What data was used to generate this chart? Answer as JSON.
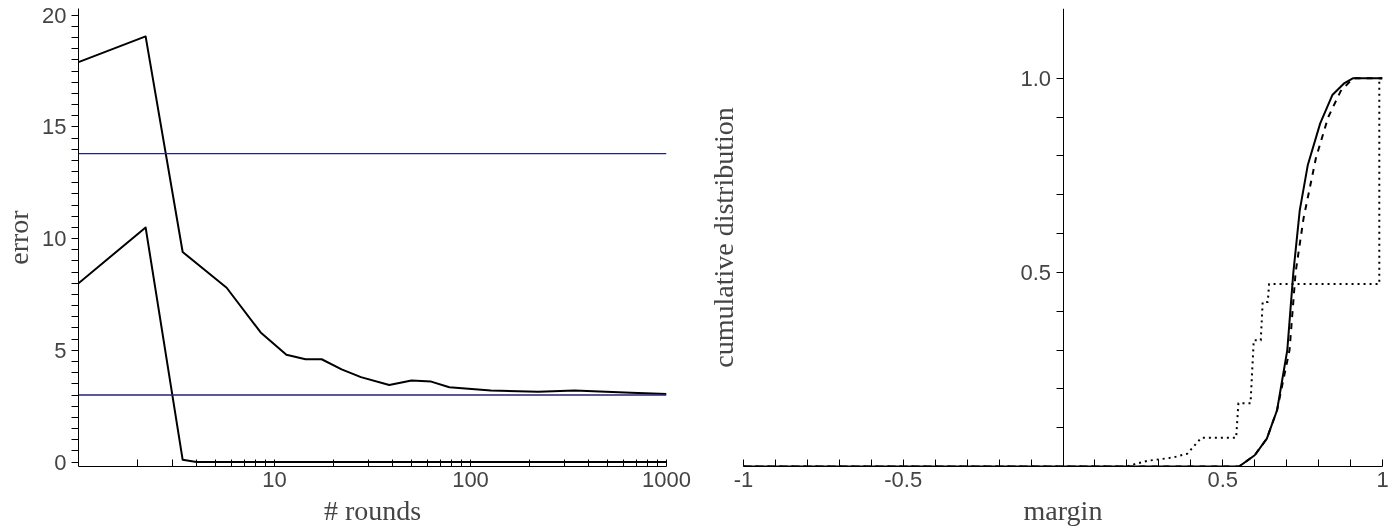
{
  "chart_data": [
    {
      "type": "line",
      "xlabel": "# rounds",
      "ylabel": "error",
      "log": "x",
      "xlim": [
        1,
        1000
      ],
      "ylim": [
        -0.2,
        20.3
      ],
      "xticks": [
        {
          "value": 2,
          "label": null
        },
        {
          "value": 3,
          "label": null
        },
        {
          "value": 4,
          "label": null
        },
        {
          "value": 5,
          "label": null
        },
        {
          "value": 6,
          "label": null
        },
        {
          "value": 7,
          "label": null
        },
        {
          "value": 8,
          "label": null
        },
        {
          "value": 9,
          "label": null
        },
        10,
        {
          "value": 20,
          "label": null
        },
        {
          "value": 30,
          "label": null
        },
        {
          "value": 40,
          "label": null
        },
        {
          "value": 50,
          "label": null
        },
        {
          "value": 60,
          "label": null
        },
        {
          "value": 70,
          "label": null
        },
        {
          "value": 80,
          "label": null
        },
        {
          "value": 90,
          "label": null
        },
        100,
        {
          "value": 200,
          "label": null
        },
        {
          "value": 300,
          "label": null
        },
        {
          "value": 400,
          "label": null
        },
        {
          "value": 500,
          "label": null
        },
        {
          "value": 600,
          "label": null
        },
        {
          "value": 700,
          "label": null
        },
        {
          "value": 800,
          "label": null
        },
        {
          "value": 900,
          "label": null
        },
        1000
      ],
      "yticks": [
        0,
        {
          "value": 0.5,
          "label": null
        },
        {
          "value": 1,
          "label": null
        },
        {
          "value": 1.5,
          "label": null
        },
        {
          "value": 2,
          "label": null
        },
        {
          "value": 2.5,
          "label": null
        },
        {
          "value": 3,
          "label": null
        },
        {
          "value": 3.5,
          "label": null
        },
        {
          "value": 4,
          "label": null
        },
        {
          "value": 4.5,
          "label": null
        },
        5,
        {
          "value": 5.5,
          "label": null
        },
        {
          "value": 6,
          "label": null
        },
        {
          "value": 6.5,
          "label": null
        },
        {
          "value": 7,
          "label": null
        },
        {
          "value": 7.5,
          "label": null
        },
        {
          "value": 8,
          "label": null
        },
        {
          "value": 8.5,
          "label": null
        },
        {
          "value": 9,
          "label": null
        },
        {
          "value": 9.5,
          "label": null
        },
        10,
        {
          "value": 10.5,
          "label": null
        },
        {
          "value": 11,
          "label": null
        },
        {
          "value": 11.5,
          "label": null
        },
        {
          "value": 12,
          "label": null
        },
        {
          "value": 12.5,
          "label": null
        },
        {
          "value": 13,
          "label": null
        },
        {
          "value": 13.5,
          "label": null
        },
        {
          "value": 14,
          "label": null
        },
        {
          "value": 14.5,
          "label": null
        },
        15,
        {
          "value": 15.5,
          "label": null
        },
        {
          "value": 16,
          "label": null
        },
        {
          "value": 16.5,
          "label": null
        },
        {
          "value": 17,
          "label": null
        },
        {
          "value": 17.5,
          "label": null
        },
        {
          "value": 18,
          "label": null
        },
        {
          "value": 18.5,
          "label": null
        },
        {
          "value": 19,
          "label": null
        },
        {
          "value": 19.5,
          "label": null
        },
        20
      ],
      "grid": false,
      "marker": "none",
      "series": [
        {
          "color": "#000000",
          "line_style": "solid",
          "x": [
            1,
            2.2,
            3.4,
            5.7,
            8.5,
            11.5,
            14.4,
            17.4,
            22,
            27.6,
            38.5,
            50,
            63,
            78,
            127,
            222,
            340,
            660,
            1000
          ],
          "values": [
            17.9,
            19.05,
            9.4,
            7.8,
            5.8,
            4.8,
            4.6,
            4.6,
            4.15,
            3.8,
            3.45,
            3.65,
            3.6,
            3.35,
            3.2,
            3.15,
            3.2,
            3.1,
            3.05
          ]
        },
        {
          "color": "#000000",
          "line_style": "solid",
          "x": [
            1,
            2.2,
            3.4,
            4,
            1000
          ],
          "values": [
            8.0,
            10.5,
            0.1,
            0,
            0
          ]
        }
      ],
      "ref_lines": [
        {
          "axis": "y",
          "value": 13.8,
          "color": "#23237a"
        },
        {
          "axis": "y",
          "value": 3.0,
          "color": "#23237a"
        }
      ]
    },
    {
      "type": "line",
      "xlabel": "margin",
      "ylabel": "cumulative distribution",
      "xlim": [
        -1,
        1
      ],
      "ylim": [
        0,
        1.18
      ],
      "xticks": [
        -1,
        {
          "value": -0.9,
          "label": null
        },
        {
          "value": -0.8,
          "label": null
        },
        {
          "value": -0.7,
          "label": null
        },
        {
          "value": -0.6,
          "label": null
        },
        -0.5,
        {
          "value": -0.4,
          "label": null
        },
        {
          "value": -0.3,
          "label": null
        },
        {
          "value": -0.2,
          "label": null
        },
        {
          "value": -0.1,
          "label": null
        },
        {
          "value": 0.1,
          "label": null
        },
        {
          "value": 0.2,
          "label": null
        },
        {
          "value": 0.3,
          "label": null
        },
        {
          "value": 0.4,
          "label": null
        },
        0.5,
        {
          "value": 0.6,
          "label": null
        },
        {
          "value": 0.7,
          "label": null
        },
        {
          "value": 0.8,
          "label": null
        },
        {
          "value": 0.9,
          "label": null
        },
        1
      ],
      "yticks": [
        {
          "value": 0.1,
          "label": null
        },
        {
          "value": 0.2,
          "label": null
        },
        {
          "value": 0.3,
          "label": null
        },
        {
          "value": 0.4,
          "label": null
        },
        0.5,
        {
          "value": 0.6,
          "label": null
        },
        {
          "value": 0.7,
          "label": null
        },
        {
          "value": 0.8,
          "label": null
        },
        {
          "value": 0.9,
          "label": null
        },
        {
          "value": 1,
          "label": "1.0"
        }
      ],
      "grid": false,
      "marker": "none",
      "series": [
        {
          "color": "#000000",
          "line_style": "dotted",
          "x": [
            -1,
            0.197,
            0.267,
            0.344,
            0.389,
            0.433,
            0.542,
            0.549,
            0.587,
            0.597,
            0.619,
            0.625,
            0.641,
            0.645,
            0.99,
            0.99,
            1
          ],
          "values": [
            0,
            0,
            0.015,
            0.023,
            0.033,
            0.074,
            0.074,
            0.163,
            0.163,
            0.325,
            0.325,
            0.424,
            0.424,
            0.47,
            0.47,
            1,
            1
          ]
        },
        {
          "color": "#000000",
          "line_style": "dashed",
          "x": [
            -1,
            0.551,
            0.6,
            0.638,
            0.67,
            0.709,
            0.728,
            0.753,
            0.792,
            0.83,
            0.869,
            0.907,
            1
          ],
          "values": [
            0,
            0,
            0.029,
            0.072,
            0.145,
            0.3,
            0.5,
            0.64,
            0.796,
            0.9,
            0.967,
            1,
            1
          ]
        },
        {
          "color": "#000000",
          "line_style": "solid",
          "x": [
            -1,
            0.551,
            0.6,
            0.638,
            0.67,
            0.702,
            0.721,
            0.741,
            0.766,
            0.805,
            0.843,
            0.881,
            0.907,
            1
          ],
          "values": [
            0,
            0,
            0.029,
            0.072,
            0.145,
            0.3,
            0.5,
            0.66,
            0.776,
            0.884,
            0.957,
            0.988,
            1,
            1
          ]
        }
      ]
    }
  ]
}
